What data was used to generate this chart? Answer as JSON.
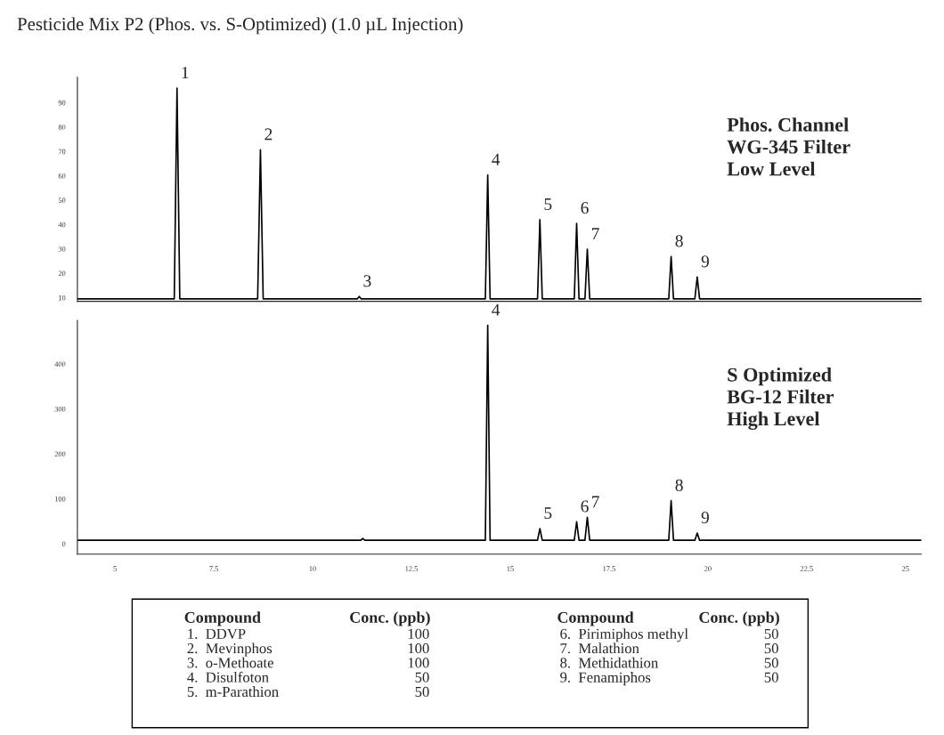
{
  "chart_data": [
    {
      "type": "line",
      "title": "Pesticide Mix P2 (Phos. vs. S-Optimized) (1.0 µL Injection)",
      "xlim": [
        4.05,
        25.4
      ],
      "ylim": [
        8.5,
        100.5
      ],
      "yticks": [
        10,
        20,
        30,
        40,
        50,
        60,
        70,
        80,
        90
      ],
      "tick_labels": "y",
      "grid": false,
      "legend": false,
      "series": [
        {
          "color": "#000000",
          "x": [
            4.05,
            6.5,
            6.57,
            6.64,
            8.61,
            8.68,
            8.75,
            11.13,
            11.18,
            11.23,
            14.37,
            14.43,
            14.49,
            15.69,
            15.75,
            15.81,
            16.62,
            16.68,
            16.74,
            16.89,
            16.95,
            17.01,
            19.01,
            19.07,
            19.13,
            19.67,
            19.73,
            19.79,
            25.4
          ],
          "values": [
            9.5,
            9.5,
            96,
            9.5,
            9.5,
            70.7,
            9.5,
            9.5,
            10.5,
            9.5,
            9.5,
            60.4,
            9.5,
            9.5,
            42,
            9.5,
            9.5,
            40.5,
            9.5,
            9.5,
            29.9,
            9.5,
            9.5,
            26.9,
            9.5,
            9.5,
            18.5,
            9.5,
            9.5
          ]
        }
      ],
      "annotations": [
        {
          "text": "1",
          "x": 6.57,
          "y": 96
        },
        {
          "text": "2",
          "x": 8.68,
          "y": 70.7
        },
        {
          "text": "3",
          "x": 11.18,
          "y": 10.5
        },
        {
          "text": "4",
          "x": 14.43,
          "y": 60.4
        },
        {
          "text": "5",
          "x": 15.75,
          "y": 42
        },
        {
          "text": "6",
          "x": 16.68,
          "y": 40.5
        },
        {
          "text": "7",
          "x": 16.95,
          "y": 29.9
        },
        {
          "text": "8",
          "x": 19.07,
          "y": 26.9
        },
        {
          "text": "9",
          "x": 19.73,
          "y": 18.5
        },
        "Phos. Channel\nWG-345 Filter\nLow Level"
      ]
    },
    {
      "type": "line",
      "xlim": [
        4.05,
        25.4
      ],
      "ylim": [
        -23,
        497
      ],
      "xticks": [
        5,
        7.5,
        10,
        12.5,
        15,
        17.5,
        20,
        22.5,
        25
      ],
      "yticks": [
        0,
        100,
        200,
        300,
        400
      ],
      "grid": false,
      "legend": false,
      "series": [
        {
          "color": "#000000",
          "x": [
            4.05,
            11.22,
            11.27,
            11.32,
            14.37,
            14.43,
            14.49,
            15.69,
            15.75,
            15.81,
            16.62,
            16.68,
            16.74,
            16.89,
            16.95,
            17.01,
            19.01,
            19.07,
            19.13,
            19.67,
            19.73,
            19.79,
            25.4
          ],
          "values": [
            8,
            8,
            12,
            8,
            8,
            486,
            8,
            8,
            34,
            8,
            8,
            49,
            8,
            8,
            59,
            8,
            8,
            96,
            8,
            8,
            24,
            8,
            8
          ]
        }
      ],
      "annotations": [
        {
          "text": "4",
          "x": 14.43,
          "y": 486
        },
        {
          "text": "5",
          "x": 15.75,
          "y": 34
        },
        {
          "text": "6",
          "x": 16.68,
          "y": 49
        },
        {
          "text": "7",
          "x": 16.95,
          "y": 59
        },
        {
          "text": "8",
          "x": 19.07,
          "y": 96
        },
        {
          "text": "9",
          "x": 19.73,
          "y": 24
        },
        "S Optimized\nBG-12 Filter\nHigh Level",
        "Compound\n1.  DDVP\n2.  Mevinphos\n3.  o-Methoate\n4.  Disulfoton\n5.  m-Parathion",
        "Conc. (ppb)\n100\n100\n100\n50\n50",
        "Compound\n6.  Pirimiphos methyl\n7.  Malathion\n8.  Methidathion\n9.  Fenamiphos",
        "Conc. (ppb)\n50\n50\n50\n50"
      ]
    }
  ]
}
